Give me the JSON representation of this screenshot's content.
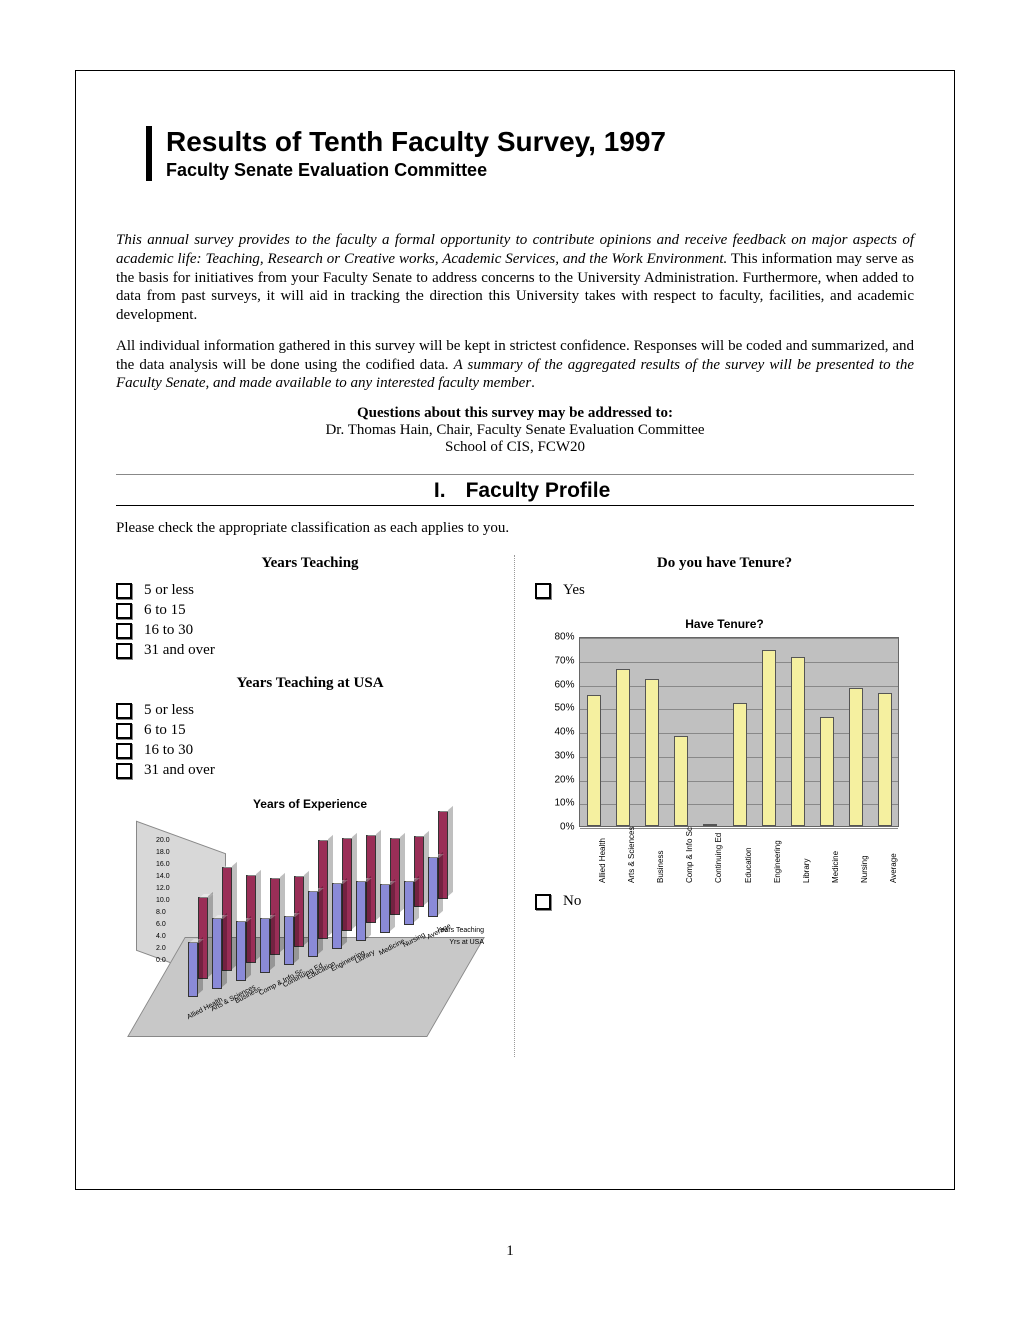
{
  "title": {
    "main": "Results of Tenth Faculty Survey, 1997",
    "sub": "Faculty Senate Evaluation Committee"
  },
  "intro": {
    "p1a": "This annual survey provides to the faculty a formal opportunity to contribute opinions and receive feedback on major aspects of academic life: Teaching, Research or Creative works, Academic Services, and the Work Environment.",
    "p1b": "  This information may serve as the basis for initiatives from your Faculty Senate to address concerns to the University Administration.  Furthermore, when added to data from past surveys, it will aid in tracking the direction this University takes with respect to faculty, facilities, and academic development.",
    "p2a": "All individual information gathered in this survey will be kept in strictest confidence.  Responses will be coded and summarized, and the data analysis will be done using the codified data.  ",
    "p2b": "A summary of the aggregated results of the survey will be presented to the Faculty Senate, and made available to any interested faculty member",
    "p2c": "."
  },
  "contact": {
    "heading": "Questions about this survey may be addressed to:",
    "line1": "Dr. Thomas Hain, Chair, Faculty Senate Evaluation Committee",
    "line2": "School of CIS, FCW20"
  },
  "section1": {
    "number": "I.",
    "title": "Faculty Profile",
    "instruction": "Please check the appropriate classification as each applies to you."
  },
  "left": {
    "q1_heading": "Years Teaching",
    "q2_heading": "Years Teaching at USA",
    "options": [
      "5 or less",
      "6 to 15",
      "16 to 30",
      "31 and over"
    ]
  },
  "right": {
    "q_heading": "Do you have Tenure?",
    "yes_label": "Yes",
    "no_label": "No"
  },
  "tenure_chart": {
    "type": "bar",
    "title": "Have Tenure?",
    "background_color": "#c0c0c0",
    "grid_color": "#888888",
    "bar_color": "#f5f0a0",
    "bar_border": "#555555",
    "ylim": [
      0,
      80
    ],
    "ytick_step": 10,
    "ytick_suffix": "%",
    "categories": [
      "Allied Health",
      "Arts & Sciences",
      "Business",
      "Comp & Info Sc",
      "Continuing Ed",
      "Education",
      "Engineering",
      "Library",
      "Medicine",
      "Nursing",
      "Average"
    ],
    "values": [
      55,
      66,
      62,
      38,
      0,
      52,
      74,
      71,
      46,
      58,
      56
    ]
  },
  "exp_chart": {
    "type": "bar3d",
    "title": "Years of Experience",
    "floor_color": "#c8c8c8",
    "wall_color": "#d8d8d8",
    "series": [
      {
        "name": "Years Teaching",
        "color": "#9a2e57"
      },
      {
        "name": "Yrs at USA",
        "color": "#8a8ad8"
      }
    ],
    "y_ticks": [
      "0.0",
      "2.0",
      "4.0",
      "6.0",
      "8.0",
      "10.0",
      "12.0",
      "14.0",
      "16.0",
      "18.0",
      "20.0"
    ],
    "categories": [
      "Allied Health",
      "Arts & Sciences",
      "Business",
      "Comp & Info Sc",
      "Continuing Ed",
      "Education",
      "Engineering",
      "Library",
      "Medicine",
      "Nursing",
      "Average"
    ],
    "values_teaching": [
      15,
      19,
      16,
      14,
      13,
      18,
      17,
      16,
      14,
      13,
      16
    ],
    "values_usa": [
      10,
      13,
      11,
      10,
      9,
      12,
      12,
      11,
      9,
      8,
      11
    ]
  },
  "page_number": "1"
}
